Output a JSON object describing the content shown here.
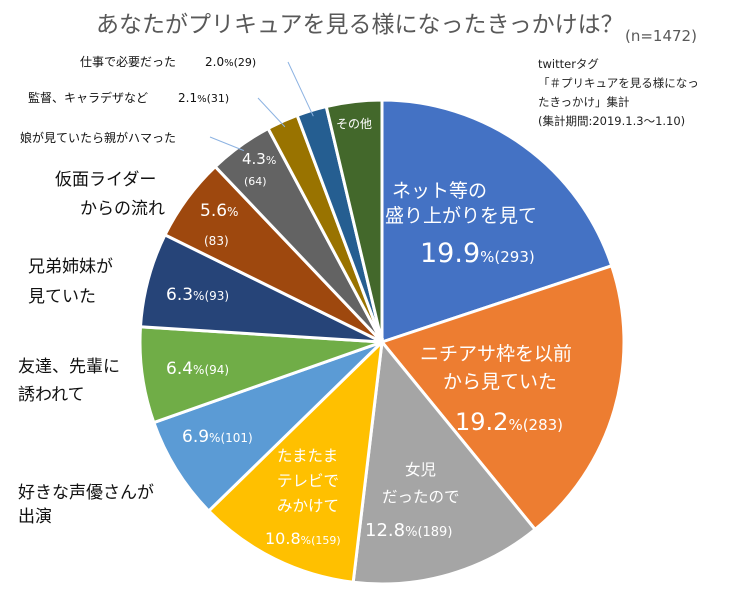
{
  "chart_data": {
    "type": "pie",
    "title": "あなたがプリキュアを見る様になったきっかけは？",
    "total_label": "(n=1472)",
    "note": [
      "twitterタグ",
      "「＃プリキュアを見る様になっ",
      "たきっかけ」集計",
      "(集計期間:2019.1.3～1.10)"
    ],
    "slices": [
      {
        "name": "ネット等の盛り上がりを見て",
        "label_lines": [
          "ネット等の",
          "盛り上がりを見て"
        ],
        "percent": 19.9,
        "count": 293,
        "pct_text": "19.9",
        "count_text": "(293)",
        "color": "#4472c4"
      },
      {
        "name": "ニチアサ枠を以前から見ていた",
        "label_lines": [
          "ニチアサ枠を以前",
          "から見ていた"
        ],
        "percent": 19.2,
        "count": 283,
        "pct_text": "19.2",
        "count_text": "(283)",
        "color": "#ed7d31"
      },
      {
        "name": "女児だったので",
        "label_lines": [
          "女児",
          "だったので"
        ],
        "percent": 12.8,
        "count": 189,
        "pct_text": "12.8",
        "count_text": "(189)",
        "color": "#a5a5a5"
      },
      {
        "name": "たまたまテレビでみかけて",
        "label_lines": [
          "たまたま",
          "テレビで",
          "みかけて"
        ],
        "percent": 10.8,
        "count": 159,
        "pct_text": "10.8",
        "count_text": "(159)",
        "color": "#ffc000"
      },
      {
        "name": "好きな声優さんが出演",
        "label_lines": [
          "好きな声優さんが",
          "出演"
        ],
        "percent": 6.9,
        "count": 101,
        "pct_text": "6.9",
        "count_text": "(101)",
        "color": "#5b9bd5"
      },
      {
        "name": "友達、先輩に誘われて",
        "label_lines": [
          "友達、先輩に",
          "誘われて"
        ],
        "percent": 6.4,
        "count": 94,
        "pct_text": "6.4",
        "count_text": "(94)",
        "color": "#70ad47"
      },
      {
        "name": "兄弟姉妹が見ていた",
        "label_lines": [
          "兄弟姉妹が",
          "見ていた"
        ],
        "percent": 6.3,
        "count": 93,
        "pct_text": "6.3",
        "count_text": "(93)",
        "color": "#264478"
      },
      {
        "name": "仮面ライダーからの流れ",
        "label_lines": [
          "仮面ライダー",
          "からの流れ"
        ],
        "percent": 5.6,
        "count": 83,
        "pct_text": "5.6",
        "count_text": "(83)",
        "color": "#9e480e"
      },
      {
        "name": "娘が見ていたら親がハマった",
        "label_lines": [
          "娘が見ていたら親がハマった"
        ],
        "percent": 4.3,
        "count": 64,
        "pct_text": "4.3",
        "count_text": "(64)",
        "color": "#636363"
      },
      {
        "name": "監督、キャラデザなど",
        "label_lines": [
          "監督、キャラデザなど"
        ],
        "percent": 2.1,
        "count": 31,
        "pct_text": "2.1",
        "count_text": "(31)",
        "color": "#997300"
      },
      {
        "name": "仕事で必要だった",
        "label_lines": [
          "仕事で必要だった"
        ],
        "percent": 2.0,
        "count": 29,
        "pct_text": "2.0",
        "count_text": "(29)",
        "color": "#255e91"
      },
      {
        "name": "その他",
        "label_lines": [
          "その他"
        ],
        "percent": 3.7,
        "count": 54,
        "pct_text": "",
        "count_text": "",
        "color": "#43682b"
      }
    ]
  }
}
